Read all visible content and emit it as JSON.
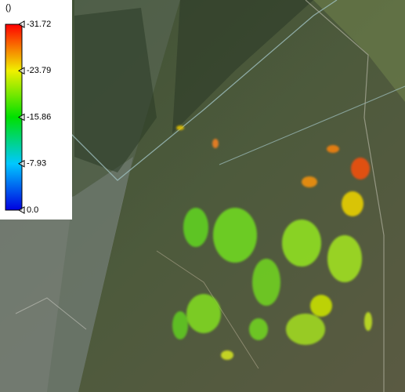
{
  "colorbar": {
    "title": "()",
    "range": [
      0,
      -31.72
    ],
    "ticks": [
      -31.72,
      -23.79,
      -15.86,
      -7.93,
      {
        "value": 0,
        "label": "0.0"
      }
    ],
    "colors": [
      "#0000e0",
      "#00c8ff",
      "#00e000",
      "#f0f000",
      "#ff0000"
    ]
  }
}
